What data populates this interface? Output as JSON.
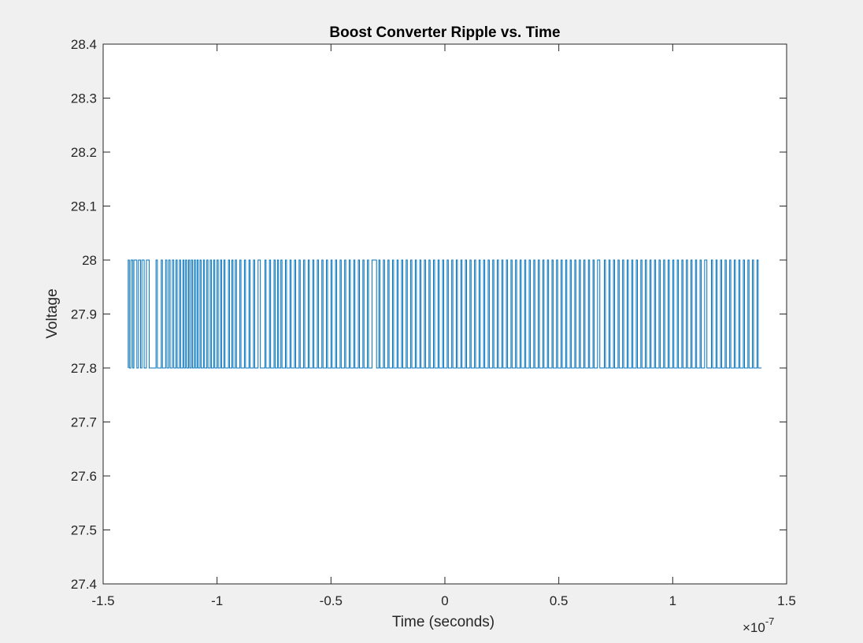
{
  "chart_data": {
    "type": "line",
    "title": "Boost Converter Ripple vs. Time",
    "xlabel": "Time (seconds)",
    "ylabel": "Voltage",
    "xlim": [
      -1.5,
      1.5
    ],
    "ylim": [
      27.4,
      28.4
    ],
    "x_scale_exponent": "×10",
    "x_scale_exponent_power": "-7",
    "x_ticks": [
      "-1.5",
      "-1",
      "-0.5",
      "0",
      "0.5",
      "1",
      "1.5"
    ],
    "y_ticks": [
      "27.4",
      "27.5",
      "27.6",
      "27.7",
      "27.8",
      "27.9",
      "28",
      "28.1",
      "28.2",
      "28.3",
      "28.4"
    ],
    "grid": false,
    "series": [
      {
        "color": "#0072bd",
        "description_range": [
          -1.39,
          1.39
        ],
        "levels": [
          27.8,
          28.0
        ],
        "transitions": [
          -1.39,
          -1.385,
          -1.378,
          -1.37,
          -1.365,
          -1.352,
          -1.345,
          -1.336,
          -1.33,
          -1.32,
          -1.31,
          -1.298,
          -1.268,
          -1.262,
          -1.245,
          -1.24,
          -1.226,
          -1.22,
          -1.212,
          -1.206,
          -1.196,
          -1.19,
          -1.18,
          -1.175,
          -1.165,
          -1.16,
          -1.15,
          -1.145,
          -1.138,
          -1.133,
          -1.125,
          -1.12,
          -1.113,
          -1.108,
          -1.1,
          -1.095,
          -1.088,
          -1.083,
          -1.075,
          -1.07,
          -1.06,
          -1.055,
          -1.045,
          -1.04,
          -1.03,
          -1.025,
          -1.015,
          -1.01,
          -1.0,
          -0.995,
          -0.985,
          -0.98,
          -0.97,
          -0.965,
          -0.95,
          -0.945,
          -0.935,
          -0.93,
          -0.92,
          -0.915,
          -0.9,
          -0.895,
          -0.88,
          -0.875,
          -0.86,
          -0.855,
          -0.84,
          -0.835,
          -0.82,
          -0.81,
          -0.79,
          -0.785,
          -0.77,
          -0.765,
          -0.75,
          -0.745,
          -0.735,
          -0.73,
          -0.72,
          -0.715,
          -0.7,
          -0.695,
          -0.68,
          -0.675,
          -0.66,
          -0.655,
          -0.64,
          -0.635,
          -0.62,
          -0.615,
          -0.6,
          -0.595,
          -0.58,
          -0.575,
          -0.56,
          -0.555,
          -0.54,
          -0.535,
          -0.52,
          -0.515,
          -0.5,
          -0.495,
          -0.48,
          -0.475,
          -0.46,
          -0.455,
          -0.44,
          -0.435,
          -0.42,
          -0.415,
          -0.4,
          -0.395,
          -0.38,
          -0.375,
          -0.36,
          -0.355,
          -0.34,
          -0.335,
          -0.32,
          -0.3,
          -0.29,
          -0.285,
          -0.27,
          -0.265,
          -0.25,
          -0.245,
          -0.23,
          -0.225,
          -0.21,
          -0.205,
          -0.19,
          -0.185,
          -0.17,
          -0.165,
          -0.15,
          -0.145,
          -0.13,
          -0.125,
          -0.11,
          -0.105,
          -0.09,
          -0.085,
          -0.07,
          -0.065,
          -0.05,
          -0.045,
          -0.03,
          -0.025,
          -0.01,
          -0.005,
          0.01,
          0.015,
          0.03,
          0.035,
          0.05,
          0.055,
          0.07,
          0.075,
          0.09,
          0.095,
          0.11,
          0.115,
          0.13,
          0.135,
          0.15,
          0.155,
          0.17,
          0.175,
          0.19,
          0.195,
          0.21,
          0.215,
          0.23,
          0.235,
          0.25,
          0.255,
          0.27,
          0.275,
          0.29,
          0.295,
          0.31,
          0.315,
          0.33,
          0.335,
          0.35,
          0.355,
          0.37,
          0.375,
          0.39,
          0.395,
          0.41,
          0.415,
          0.43,
          0.435,
          0.45,
          0.455,
          0.47,
          0.475,
          0.49,
          0.495,
          0.51,
          0.515,
          0.53,
          0.535,
          0.55,
          0.555,
          0.57,
          0.575,
          0.59,
          0.595,
          0.61,
          0.615,
          0.63,
          0.635,
          0.65,
          0.655,
          0.67,
          0.68,
          0.7,
          0.705,
          0.72,
          0.725,
          0.74,
          0.745,
          0.76,
          0.765,
          0.78,
          0.785,
          0.8,
          0.805,
          0.82,
          0.825,
          0.84,
          0.845,
          0.86,
          0.865,
          0.88,
          0.885,
          0.9,
          0.905,
          0.92,
          0.925,
          0.94,
          0.945,
          0.96,
          0.965,
          0.98,
          0.985,
          1.0,
          1.005,
          1.02,
          1.025,
          1.04,
          1.045,
          1.06,
          1.065,
          1.08,
          1.085,
          1.1,
          1.105,
          1.12,
          1.125,
          1.14,
          1.15,
          1.17,
          1.175,
          1.19,
          1.195,
          1.21,
          1.215,
          1.23,
          1.235,
          1.25,
          1.255,
          1.27,
          1.275,
          1.29,
          1.295,
          1.31,
          1.315,
          1.33,
          1.335,
          1.35,
          1.355,
          1.37,
          1.375,
          1.39
        ]
      }
    ]
  }
}
